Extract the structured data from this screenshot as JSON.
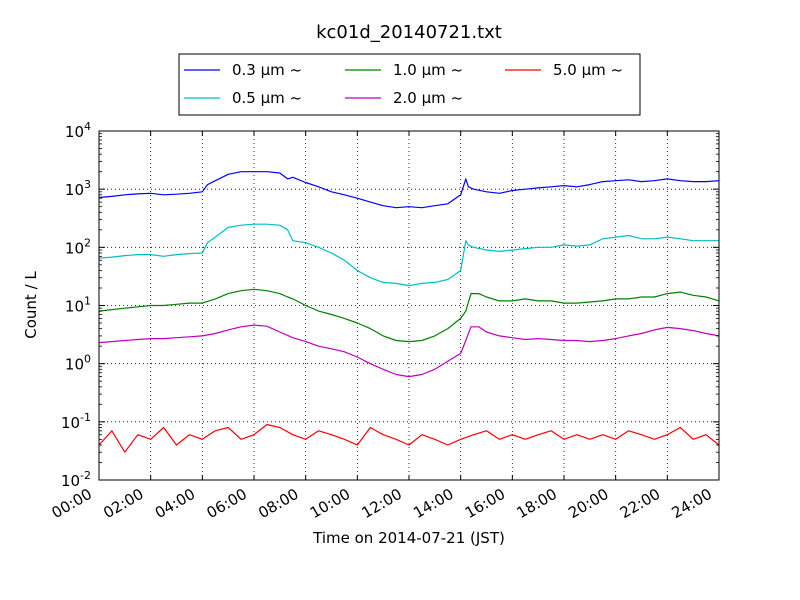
{
  "chart_data": {
    "type": "line",
    "title": "kc01d_20140721.txt",
    "xlabel": "Time on 2014-07-21 (JST)",
    "ylabel": "Count / L",
    "x_unit": "hours",
    "xlim": [
      0,
      24
    ],
    "xticks": [
      0,
      2,
      4,
      6,
      8,
      10,
      12,
      14,
      16,
      18,
      20,
      22,
      24
    ],
    "xtick_labels": [
      "00:00",
      "02:00",
      "04:00",
      "06:00",
      "08:00",
      "10:00",
      "12:00",
      "14:00",
      "16:00",
      "18:00",
      "20:00",
      "22:00",
      "24:00"
    ],
    "yscale": "log",
    "ylim": [
      0.01,
      10000
    ],
    "yticks": [
      0.01,
      0.1,
      1,
      10,
      100,
      1000,
      10000
    ],
    "ytick_labels": [
      {
        "base": "10",
        "exp": "-2"
      },
      {
        "base": "10",
        "exp": "-1"
      },
      {
        "base": "10",
        "exp": "0"
      },
      {
        "base": "10",
        "exp": "1"
      },
      {
        "base": "10",
        "exp": "2"
      },
      {
        "base": "10",
        "exp": "3"
      },
      {
        "base": "10",
        "exp": "4"
      }
    ],
    "grid": true,
    "legend_position": "top-center",
    "series": [
      {
        "name": "0.3 μm ~",
        "color": "#0000ff",
        "x": [
          0,
          0.5,
          1,
          1.5,
          2,
          2.5,
          3,
          3.5,
          4,
          4.2,
          4.5,
          5,
          5.5,
          6,
          6.5,
          7,
          7.3,
          7.5,
          8,
          8.5,
          9,
          9.5,
          10,
          10.5,
          11,
          11.5,
          12,
          12.5,
          13,
          13.5,
          14,
          14.2,
          14.3,
          14.5,
          15,
          15.5,
          16,
          16.5,
          17,
          17.5,
          18,
          18.5,
          19,
          19.5,
          20,
          20.5,
          21,
          21.5,
          22,
          22.5,
          23,
          23.5,
          24
        ],
        "y": [
          720,
          750,
          800,
          830,
          850,
          800,
          820,
          850,
          900,
          1200,
          1400,
          1800,
          2000,
          2000,
          2000,
          1900,
          1500,
          1600,
          1300,
          1100,
          900,
          800,
          700,
          600,
          520,
          480,
          500,
          480,
          520,
          560,
          800,
          1500,
          1100,
          1000,
          900,
          850,
          950,
          1000,
          1050,
          1100,
          1150,
          1100,
          1200,
          1350,
          1400,
          1450,
          1350,
          1400,
          1500,
          1400,
          1350,
          1350,
          1400
        ]
      },
      {
        "name": "0.5 μm ~",
        "color": "#00bfbf",
        "x": [
          0,
          0.5,
          1,
          1.5,
          2,
          2.5,
          3,
          3.5,
          4,
          4.2,
          4.5,
          5,
          5.5,
          6,
          6.5,
          7,
          7.3,
          7.5,
          8,
          8.5,
          9,
          9.5,
          10,
          10.5,
          11,
          11.5,
          12,
          12.5,
          13,
          13.5,
          14,
          14.2,
          14.3,
          14.5,
          15,
          15.5,
          16,
          16.5,
          17,
          17.5,
          18,
          18.5,
          19,
          19.5,
          20,
          20.5,
          21,
          21.5,
          22,
          22.5,
          23,
          23.5,
          24
        ],
        "y": [
          65,
          68,
          72,
          75,
          75,
          70,
          75,
          78,
          80,
          120,
          150,
          220,
          240,
          250,
          250,
          240,
          200,
          130,
          120,
          100,
          80,
          60,
          40,
          30,
          25,
          24,
          22,
          24,
          25,
          28,
          40,
          130,
          110,
          100,
          90,
          85,
          90,
          95,
          100,
          100,
          110,
          105,
          110,
          140,
          150,
          160,
          140,
          140,
          150,
          140,
          130,
          130,
          130
        ]
      },
      {
        "name": "1.0 μm ~",
        "color": "#008000",
        "x": [
          0,
          0.5,
          1,
          1.5,
          2,
          2.5,
          3,
          3.5,
          4,
          4.5,
          5,
          5.5,
          6,
          6.5,
          7,
          7.3,
          7.5,
          8,
          8.5,
          9,
          9.5,
          10,
          10.5,
          11,
          11.5,
          12,
          12.5,
          13,
          13.5,
          14,
          14.2,
          14.4,
          14.7,
          15,
          15.5,
          16,
          16.5,
          17,
          17.5,
          18,
          18.5,
          19,
          19.5,
          20,
          20.5,
          21,
          21.5,
          22,
          22.5,
          23,
          23.5,
          24
        ],
        "y": [
          8,
          8.5,
          9,
          9.5,
          10,
          10,
          10.5,
          11,
          11,
          13,
          16,
          18,
          19,
          18,
          16,
          14,
          13,
          10,
          8,
          7,
          6,
          5,
          4,
          3,
          2.5,
          2.4,
          2.5,
          3,
          4,
          6,
          8,
          16,
          16,
          14,
          12,
          12,
          13,
          12,
          12,
          11,
          11,
          11.5,
          12,
          13,
          13,
          14,
          14,
          16,
          17,
          15,
          14,
          12
        ]
      },
      {
        "name": "2.0 μm ~",
        "color": "#bf00bf",
        "x": [
          0,
          0.5,
          1,
          1.5,
          2,
          2.5,
          3,
          3.5,
          4,
          4.5,
          5,
          5.5,
          6,
          6.5,
          7,
          7.5,
          8,
          8.5,
          9,
          9.5,
          10,
          10.5,
          11,
          11.5,
          12,
          12.5,
          13,
          13.5,
          14,
          14.2,
          14.4,
          14.7,
          15,
          15.5,
          16,
          16.5,
          17,
          17.5,
          18,
          18.5,
          19,
          19.5,
          20,
          20.5,
          21,
          21.5,
          22,
          22.5,
          23,
          23.5,
          24
        ],
        "y": [
          2.3,
          2.4,
          2.5,
          2.6,
          2.7,
          2.7,
          2.8,
          2.9,
          3,
          3.3,
          3.8,
          4.3,
          4.6,
          4.4,
          3.5,
          2.8,
          2.4,
          2,
          1.8,
          1.6,
          1.3,
          1,
          0.8,
          0.65,
          0.6,
          0.65,
          0.8,
          1.1,
          1.5,
          2.5,
          4.3,
          4.3,
          3.5,
          3,
          2.8,
          2.6,
          2.7,
          2.6,
          2.5,
          2.5,
          2.4,
          2.5,
          2.7,
          3,
          3.3,
          3.8,
          4.2,
          4,
          3.7,
          3.3,
          3
        ]
      },
      {
        "name": "5.0 μm ~",
        "color": "#ff0000",
        "x": [
          0,
          0.5,
          1,
          1.5,
          2,
          2.5,
          3,
          3.5,
          4,
          4.5,
          5,
          5.5,
          6,
          6.5,
          7,
          7.5,
          8,
          8.5,
          9,
          9.5,
          10,
          10.5,
          11,
          11.5,
          12,
          12.5,
          13,
          13.5,
          14,
          14.5,
          15,
          15.5,
          16,
          16.5,
          17,
          17.5,
          18,
          18.5,
          19,
          19.5,
          20,
          20.5,
          21,
          21.5,
          22,
          22.5,
          23,
          23.5,
          24
        ],
        "y": [
          0.04,
          0.07,
          0.03,
          0.06,
          0.05,
          0.08,
          0.04,
          0.06,
          0.05,
          0.07,
          0.08,
          0.05,
          0.06,
          0.09,
          0.08,
          0.06,
          0.05,
          0.07,
          0.06,
          0.05,
          0.04,
          0.08,
          0.06,
          0.05,
          0.04,
          0.06,
          0.05,
          0.04,
          0.05,
          0.06,
          0.07,
          0.05,
          0.06,
          0.05,
          0.06,
          0.07,
          0.05,
          0.06,
          0.05,
          0.06,
          0.05,
          0.07,
          0.06,
          0.05,
          0.06,
          0.08,
          0.05,
          0.06,
          0.04
        ]
      }
    ]
  }
}
